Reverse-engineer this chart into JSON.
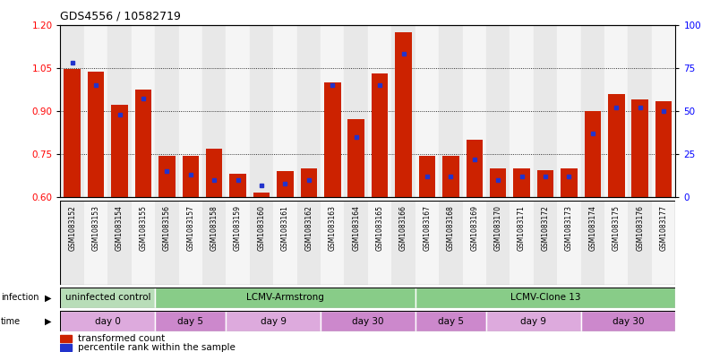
{
  "title": "GDS4556 / 10582719",
  "samples": [
    "GSM1083152",
    "GSM1083153",
    "GSM1083154",
    "GSM1083155",
    "GSM1083156",
    "GSM1083157",
    "GSM1083158",
    "GSM1083159",
    "GSM1083160",
    "GSM1083161",
    "GSM1083162",
    "GSM1083163",
    "GSM1083164",
    "GSM1083165",
    "GSM1083166",
    "GSM1083167",
    "GSM1083168",
    "GSM1083169",
    "GSM1083170",
    "GSM1083171",
    "GSM1083172",
    "GSM1083173",
    "GSM1083174",
    "GSM1083175",
    "GSM1083176",
    "GSM1083177"
  ],
  "red_values": [
    1.045,
    1.035,
    0.92,
    0.975,
    0.745,
    0.745,
    0.77,
    0.68,
    0.615,
    0.69,
    0.7,
    1.0,
    0.87,
    1.03,
    1.175,
    0.745,
    0.745,
    0.8,
    0.7,
    0.7,
    0.695,
    0.7,
    0.9,
    0.96,
    0.94,
    0.935
  ],
  "blue_percentiles": [
    78,
    65,
    48,
    57,
    15,
    13,
    10,
    10,
    7,
    8,
    10,
    65,
    35,
    65,
    83,
    12,
    12,
    22,
    10,
    12,
    12,
    12,
    37,
    52,
    52,
    50
  ],
  "ymin": 0.6,
  "ymax": 1.2,
  "yticks": [
    0.6,
    0.75,
    0.9,
    1.05,
    1.2
  ],
  "right_yticks": [
    0,
    25,
    50,
    75,
    100
  ],
  "bar_color": "#CC2200",
  "blue_color": "#2233CC",
  "infection_groups": [
    {
      "label": "uninfected control",
      "start": 0,
      "end": 4,
      "color": "#b8ddb8"
    },
    {
      "label": "LCMV-Armstrong",
      "start": 4,
      "end": 15,
      "color": "#88cc88"
    },
    {
      "label": "LCMV-Clone 13",
      "start": 15,
      "end": 26,
      "color": "#88cc88"
    }
  ],
  "time_groups": [
    {
      "label": "day 0",
      "start": 0,
      "end": 4,
      "color": "#ddaadd"
    },
    {
      "label": "day 5",
      "start": 4,
      "end": 7,
      "color": "#cc88cc"
    },
    {
      "label": "day 9",
      "start": 7,
      "end": 11,
      "color": "#ddaadd"
    },
    {
      "label": "day 30",
      "start": 11,
      "end": 15,
      "color": "#cc88cc"
    },
    {
      "label": "day 5",
      "start": 15,
      "end": 18,
      "color": "#cc88cc"
    },
    {
      "label": "day 9",
      "start": 18,
      "end": 22,
      "color": "#ddaadd"
    },
    {
      "label": "day 30",
      "start": 22,
      "end": 26,
      "color": "#cc88cc"
    }
  ],
  "legend_items": [
    {
      "label": "transformed count",
      "color": "#CC2200"
    },
    {
      "label": "percentile rank within the sample",
      "color": "#2233CC"
    }
  ],
  "col_bg_even": "#e8e8e8",
  "col_bg_odd": "#f5f5f5"
}
